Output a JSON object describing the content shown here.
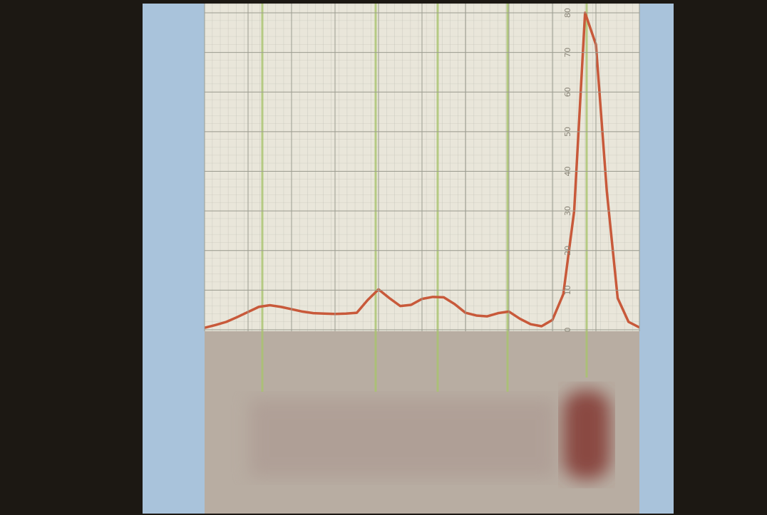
{
  "chart_data": {
    "type": "line",
    "categories": [
      null,
      null,
      null,
      null,
      null,
      null,
      null,
      null,
      null,
      null,
      null,
      null,
      null,
      null,
      null,
      null,
      null,
      null,
      null,
      null,
      null,
      null,
      null,
      null,
      null,
      null,
      null,
      null,
      null,
      null,
      null,
      null,
      null,
      null,
      null,
      null,
      null,
      null,
      null,
      null,
      null
    ],
    "series": [
      {
        "color": "#c8593a",
        "values": [
          0.5,
          1.2,
          2,
          3.2,
          4.5,
          5.8,
          6.2,
          5.8,
          5.2,
          4.6,
          4.2,
          4.1,
          4,
          4.1,
          4.3,
          7.5,
          10.2,
          8,
          6,
          6.3,
          7.8,
          8.3,
          8.2,
          6.5,
          4.3,
          3.6,
          3.4,
          4.2,
          4.6,
          2.8,
          1.4,
          0.9,
          2.5,
          9,
          30,
          80,
          72,
          35,
          8,
          2,
          0.6
        ]
      }
    ],
    "ylim": [
      0,
      80
    ],
    "yticks": [
      0,
      10,
      20,
      30,
      40,
      50,
      60,
      70,
      80
    ],
    "grid": true
  }
}
